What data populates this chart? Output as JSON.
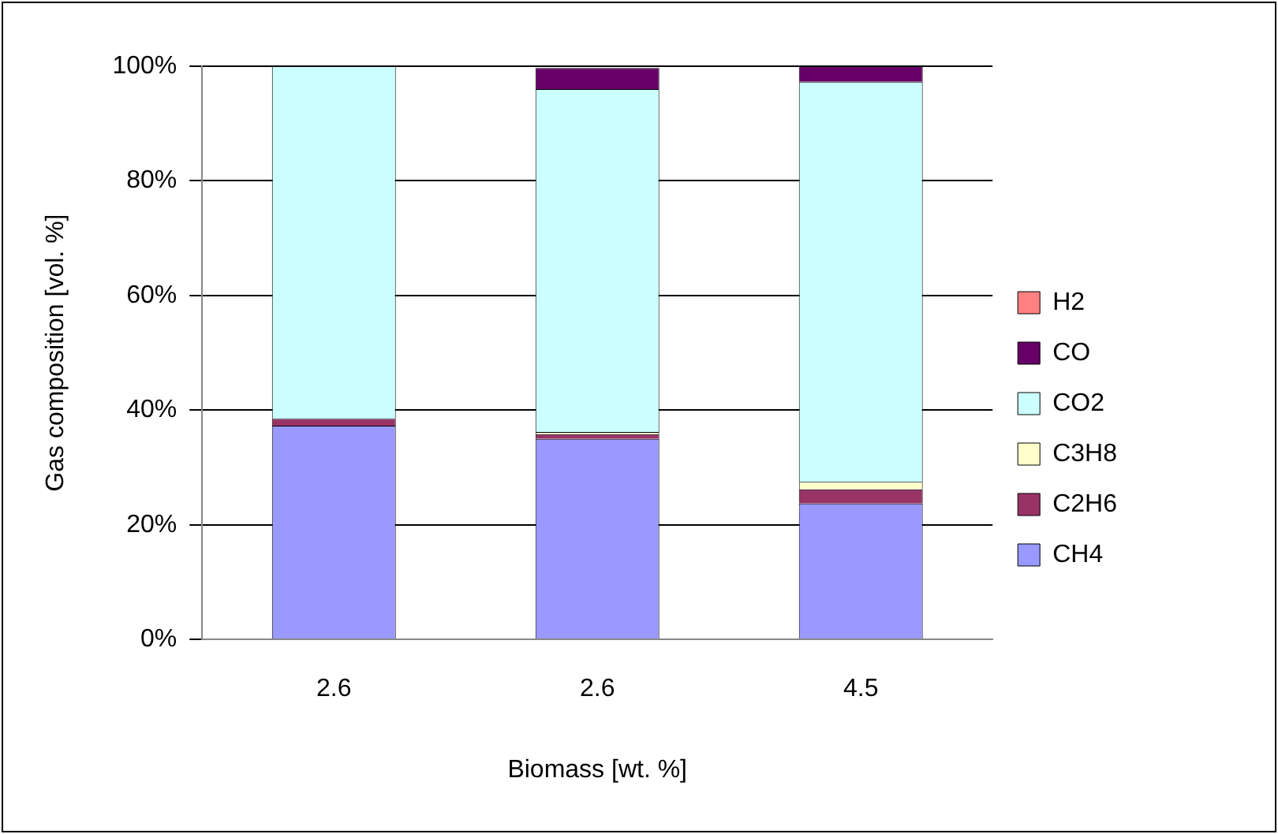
{
  "chart_data": {
    "type": "bar",
    "stacked": true,
    "xlabel": "Biomass [wt. %]",
    "ylabel": "Gas composition [vol. %]",
    "categories": [
      "2.6",
      "2.6",
      "4.5"
    ],
    "series": [
      {
        "name": "CH4",
        "color": "#9999ff",
        "values": [
          37.3,
          35.0,
          23.7
        ]
      },
      {
        "name": "C2H6",
        "color": "#993366",
        "values": [
          1.2,
          0.8,
          2.5
        ]
      },
      {
        "name": "C3H8",
        "color": "#ffffcc",
        "values": [
          null,
          0.4,
          1.3
        ]
      },
      {
        "name": "CO2",
        "color": "#ccffff",
        "values": [
          61.5,
          59.8,
          69.8
        ]
      },
      {
        "name": "CO",
        "color": "#660066",
        "values": [
          0,
          3.7,
          2.7
        ]
      },
      {
        "name": "H2",
        "color": "#ff8080",
        "values": [
          0,
          null,
          0
        ]
      }
    ],
    "ylim": [
      0,
      100
    ],
    "yticks": [
      {
        "value": 0,
        "label": "0%"
      },
      {
        "value": 20,
        "label": "20%"
      },
      {
        "value": 40,
        "label": "40%"
      },
      {
        "value": 60,
        "label": "60%"
      },
      {
        "value": 80,
        "label": "80%"
      },
      {
        "value": 100,
        "label": "100%"
      }
    ],
    "grid": "y",
    "legend": "right"
  }
}
